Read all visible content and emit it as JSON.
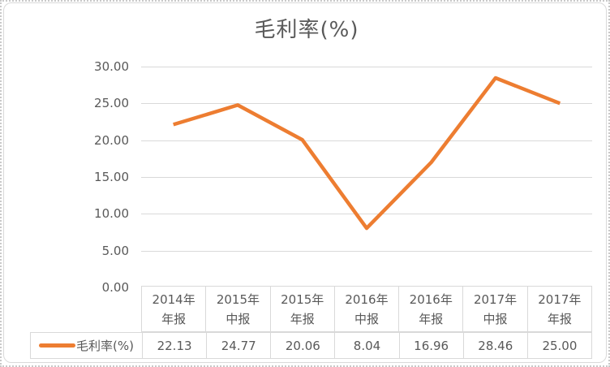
{
  "title": "毛利率(%)",
  "colors": {
    "accent": "#ED7D31",
    "text": "#595959",
    "grid": "#D9D9D9"
  },
  "chart_data": {
    "type": "line",
    "title": "毛利率(%)",
    "categories": [
      "2014年年报",
      "2015年中报",
      "2015年年报",
      "2016年中报",
      "2016年年报",
      "2017年中报",
      "2017年年报"
    ],
    "series": [
      {
        "name": "毛利率(%)",
        "color": "#ED7D31",
        "values": [
          22.13,
          24.77,
          20.06,
          8.04,
          16.96,
          28.46,
          25.0
        ]
      }
    ],
    "ylim": [
      0,
      30
    ],
    "y_tick_step": 5,
    "grid": true,
    "legend_position": "bottom-table"
  },
  "axis": {
    "y_ticks": [
      "30.00",
      "25.00",
      "20.00",
      "15.00",
      "10.00",
      "5.00",
      "0.00"
    ]
  },
  "table": {
    "headers": [
      "2014年\n年报",
      "2015年\n中报",
      "2015年\n年报",
      "2016年\n中报",
      "2016年\n年报",
      "2017年\n中报",
      "2017年\n年报"
    ],
    "values": [
      "22.13",
      "24.77",
      "20.06",
      "8.04",
      "16.96",
      "28.46",
      "25.00"
    ],
    "legend_label": "毛利率(%)"
  }
}
